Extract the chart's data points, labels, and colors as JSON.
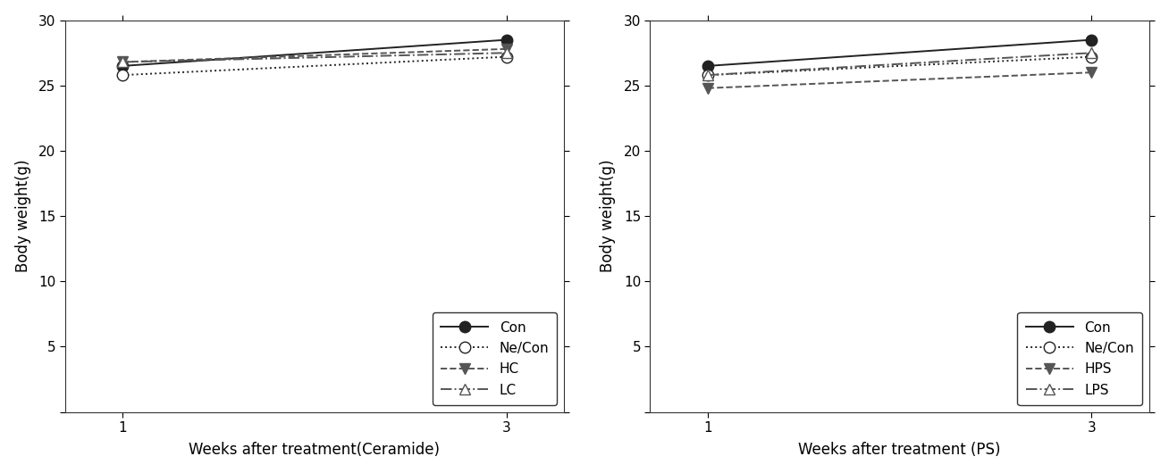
{
  "left": {
    "xlabel": "Weeks after treatment(Ceramide)",
    "ylabel": "Body weight(g)",
    "series": [
      {
        "label": "Con",
        "x": [
          1,
          3
        ],
        "y": [
          26.5,
          28.5
        ],
        "linestyle": "solid",
        "marker": "o",
        "fillstyle": "full",
        "color": "#222222"
      },
      {
        "label": "Ne/Con",
        "x": [
          1,
          3
        ],
        "y": [
          25.8,
          27.2
        ],
        "linestyle": "dotted",
        "marker": "o",
        "fillstyle": "none",
        "color": "#222222"
      },
      {
        "label": "HC",
        "x": [
          1,
          3
        ],
        "y": [
          26.8,
          27.8
        ],
        "linestyle": "dashed",
        "marker": "v",
        "fillstyle": "full",
        "color": "#555555"
      },
      {
        "label": "LC",
        "x": [
          1,
          3
        ],
        "y": [
          26.8,
          27.5
        ],
        "linestyle": "dashdot",
        "marker": "^",
        "fillstyle": "none",
        "color": "#555555"
      }
    ],
    "xlim": [
      0.7,
      3.3
    ],
    "ylim": [
      0,
      30
    ],
    "xticks": [
      1,
      3
    ],
    "yticks": [
      0,
      5,
      10,
      15,
      20,
      25,
      30
    ]
  },
  "right": {
    "xlabel": "Weeks after treatment (PS)",
    "ylabel": "Body weight(g)",
    "series": [
      {
        "label": "Con",
        "x": [
          1,
          3
        ],
        "y": [
          26.5,
          28.5
        ],
        "linestyle": "solid",
        "marker": "o",
        "fillstyle": "full",
        "color": "#222222"
      },
      {
        "label": "Ne/Con",
        "x": [
          1,
          3
        ],
        "y": [
          25.8,
          27.2
        ],
        "linestyle": "dotted",
        "marker": "o",
        "fillstyle": "none",
        "color": "#222222"
      },
      {
        "label": "HPS",
        "x": [
          1,
          3
        ],
        "y": [
          24.8,
          26.0
        ],
        "linestyle": "dashed",
        "marker": "v",
        "fillstyle": "full",
        "color": "#555555"
      },
      {
        "label": "LPS",
        "x": [
          1,
          3
        ],
        "y": [
          25.8,
          27.5
        ],
        "linestyle": "dashdot",
        "marker": "^",
        "fillstyle": "none",
        "color": "#555555"
      }
    ],
    "xlim": [
      0.7,
      3.3
    ],
    "ylim": [
      0,
      30
    ],
    "xticks": [
      1,
      3
    ],
    "yticks": [
      0,
      5,
      10,
      15,
      20,
      25,
      30
    ]
  },
  "background_color": "#ffffff",
  "markersize": 9,
  "linewidth": 1.4,
  "spine_color": "#333333",
  "tick_fontsize": 11,
  "label_fontsize": 12,
  "legend_fontsize": 11
}
